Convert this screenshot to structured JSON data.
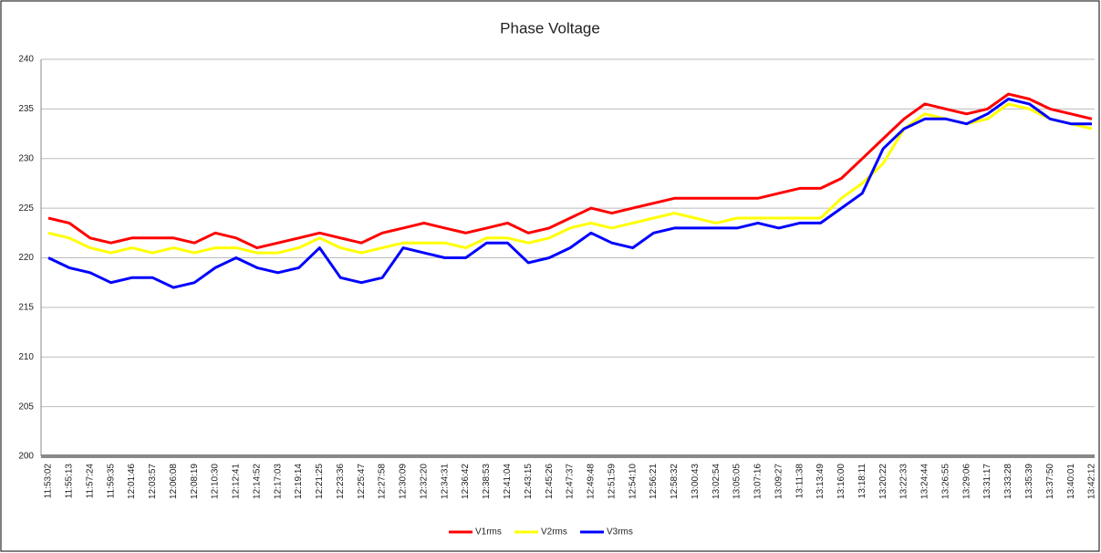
{
  "chart_data": {
    "type": "line",
    "title": "Phase Voltage",
    "categories": [
      "11:53:02",
      "11:55:13",
      "11:57:24",
      "11:59:35",
      "12:01:46",
      "12:03:57",
      "12:06:08",
      "12:08:19",
      "12:10:30",
      "12:12:41",
      "12:14:52",
      "12:17:03",
      "12:19:14",
      "12:21:25",
      "12:23:36",
      "12:25:47",
      "12:27:58",
      "12:30:09",
      "12:32:20",
      "12:34:31",
      "12:36:42",
      "12:38:53",
      "12:41:04",
      "12:43:15",
      "12:45:26",
      "12:47:37",
      "12:49:48",
      "12:51:59",
      "12:54:10",
      "12:56:21",
      "12:58:32",
      "13:00:43",
      "13:02:54",
      "13:05:05",
      "13:07:16",
      "13:09:27",
      "13:11:38",
      "13:13:49",
      "13:16:00",
      "13:18:11",
      "13:20:22",
      "13:22:33",
      "13:24:44",
      "13:26:55",
      "13:29:06",
      "13:31:17",
      "13:33:28",
      "13:35:39",
      "13:37:50",
      "13:40:01",
      "13:42:12"
    ],
    "series": [
      {
        "name": "V1rms",
        "color": "#ff0000",
        "values": [
          224,
          223.5,
          222,
          221.5,
          222,
          222,
          222,
          221.5,
          222.5,
          222,
          221,
          221.5,
          222,
          222.5,
          222,
          221.5,
          222.5,
          223,
          223.5,
          223,
          222.5,
          223,
          223.5,
          222.5,
          223,
          224,
          225,
          224.5,
          225,
          225.5,
          226,
          226,
          226,
          226,
          226,
          226.5,
          227,
          227,
          228,
          230,
          232,
          234,
          235.5,
          235,
          234.5,
          235,
          236.5,
          236,
          235,
          234.5,
          234
        ]
      },
      {
        "name": "V2rms",
        "color": "#ffff00",
        "values": [
          222.5,
          222,
          221,
          220.5,
          221,
          220.5,
          221,
          220.5,
          221,
          221,
          220.5,
          220.5,
          221,
          222,
          221,
          220.5,
          221,
          221.5,
          221.5,
          221.5,
          221,
          222,
          222,
          221.5,
          222,
          223,
          223.5,
          223,
          223.5,
          224,
          224.5,
          224,
          223.5,
          224,
          224,
          224,
          224,
          224,
          226,
          227.5,
          229.5,
          233,
          234.5,
          234,
          233.5,
          234,
          235.5,
          235,
          234,
          233.5,
          233
        ]
      },
      {
        "name": "V3rms",
        "color": "#0000ff",
        "values": [
          220,
          219,
          218.5,
          217.5,
          218,
          218,
          217,
          217.5,
          219,
          220,
          219,
          218.5,
          219,
          221,
          218,
          217.5,
          218,
          221,
          220.5,
          220,
          220,
          221.5,
          221.5,
          219.5,
          220,
          221,
          222.5,
          221.5,
          221,
          222.5,
          223,
          223,
          223,
          223,
          223.5,
          223,
          223.5,
          223.5,
          225,
          226.5,
          231,
          233,
          234,
          234,
          233.5,
          234.5,
          236,
          235.5,
          234,
          233.5,
          233.5
        ]
      }
    ],
    "ylim": [
      200,
      240
    ],
    "yticks": [
      200,
      205,
      210,
      215,
      220,
      225,
      230,
      235,
      240
    ],
    "grid": true
  }
}
